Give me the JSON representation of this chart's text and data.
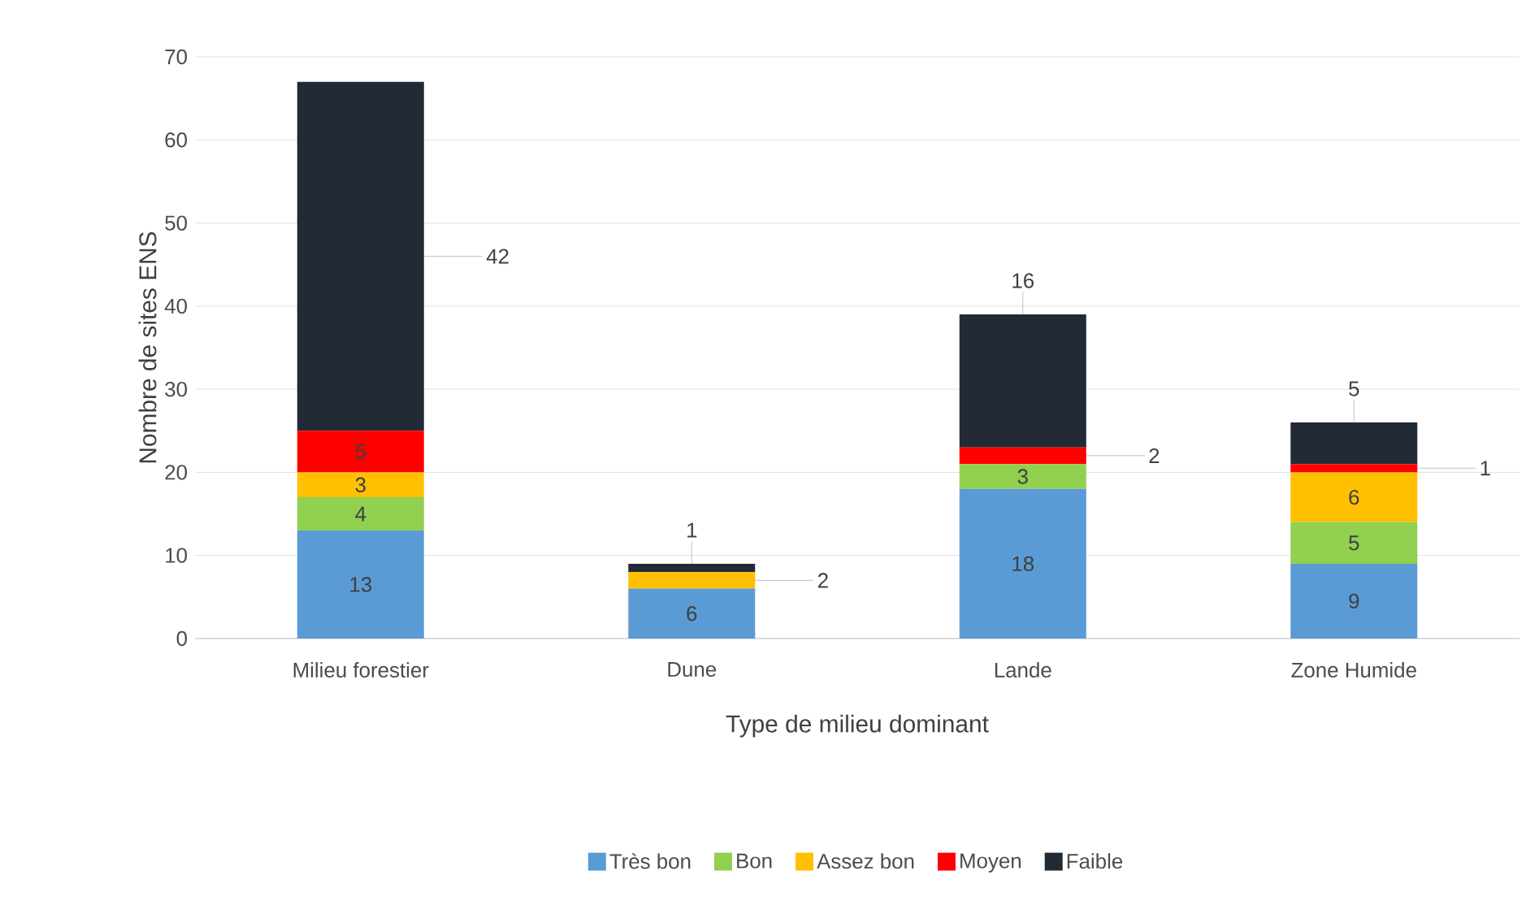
{
  "chart_data": {
    "type": "bar",
    "stacked": true,
    "xlabel": "Type de milieu dominant",
    "ylabel": "Nombre de sites ENS",
    "categories": [
      "Milieu forestier",
      "Dune",
      "Lande",
      "Zone Humide"
    ],
    "ylim": [
      0,
      70
    ],
    "yticks": [
      0,
      10,
      20,
      30,
      40,
      50,
      60,
      70
    ],
    "grid": "y",
    "legend": "bottom",
    "series": [
      {
        "name": "Très bon",
        "color": "#5b9bd5",
        "values": [
          13,
          6,
          18,
          9
        ],
        "value_labels": [
          "13",
          "6",
          "18",
          "9"
        ]
      },
      {
        "name": "Bon",
        "color": "#92d050",
        "values": [
          4,
          0,
          3,
          5
        ],
        "value_labels": [
          "4",
          null,
          "3",
          "5"
        ]
      },
      {
        "name": "Assez bon",
        "color": "#ffc000",
        "values": [
          3,
          2,
          0,
          6
        ],
        "value_labels": [
          "3",
          "2",
          null,
          "6"
        ]
      },
      {
        "name": "Moyen",
        "color": "#ff0000",
        "values": [
          5,
          0,
          2,
          1
        ],
        "value_labels": [
          "5",
          null,
          "2",
          "1"
        ]
      },
      {
        "name": "Faible",
        "color": "#222a35",
        "values": [
          42,
          1,
          16,
          5
        ],
        "value_labels": [
          "42",
          "1",
          "16",
          "5"
        ]
      }
    ]
  }
}
